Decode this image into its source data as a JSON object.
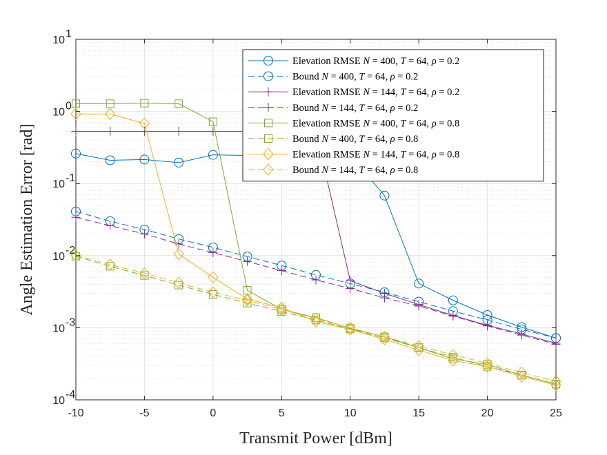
{
  "chart_data": {
    "type": "line",
    "yscale": "log",
    "xlabel": "Transmit Power [dBm]",
    "ylabel": "Angle Estimation Error [rad]",
    "xlim": [
      -10,
      25
    ],
    "ylim": [
      0.0001,
      10
    ],
    "x_ticks": [
      -10,
      -5,
      0,
      5,
      10,
      15,
      20,
      25
    ],
    "x_tick_labels": [
      "-10",
      "-5",
      "0",
      "5",
      "10",
      "15",
      "20",
      "25"
    ],
    "y_ticks": [
      {
        "value": 0.0001,
        "base": "10",
        "exp": "-4"
      },
      {
        "value": 0.001,
        "base": "10",
        "exp": "-3"
      },
      {
        "value": 0.01,
        "base": "10",
        "exp": "-2"
      },
      {
        "value": 0.1,
        "base": "10",
        "exp": "-1"
      },
      {
        "value": 1,
        "base": "10",
        "exp": "0"
      },
      {
        "value": 10,
        "base": "10",
        "exp": "1"
      }
    ],
    "grid": true,
    "minor_grid": true,
    "legend_position": "top-right",
    "x": [
      -10,
      -7.5,
      -5,
      -2.5,
      0,
      2.5,
      5,
      7.5,
      10,
      12.5,
      15,
      17.5,
      20,
      22.5,
      25
    ],
    "series": [
      {
        "name": "Elevation RMSE N = 400, T = 64, ρ = 0.2",
        "color": "#0072BD",
        "dash": "solid",
        "marker": "circle",
        "values": [
          0.26,
          0.21,
          0.215,
          0.195,
          0.25,
          0.245,
          0.25,
          0.24,
          0.245,
          0.068,
          0.0041,
          0.0024,
          0.0015,
          0.00102,
          0.00072
        ]
      },
      {
        "name": "Bound N = 400, T = 64, ρ = 0.2",
        "color": "#0072BD",
        "dash": "dashed",
        "marker": "circle",
        "values": [
          0.041,
          0.03,
          0.023,
          0.017,
          0.013,
          0.0097,
          0.0073,
          0.0054,
          0.0041,
          0.0031,
          0.0023,
          0.0017,
          0.00128,
          0.00095,
          0.00072
        ]
      },
      {
        "name": "Elevation RMSE N = 144, T = 64, ρ = 0.2",
        "color": "#7E2F8E",
        "dash": "solid",
        "marker": "plus",
        "values": [
          0.53,
          0.53,
          0.53,
          0.53,
          0.53,
          0.53,
          0.53,
          0.53,
          0.0045,
          0.003,
          0.0021,
          0.00148,
          0.00108,
          0.00082,
          0.00061
        ]
      },
      {
        "name": "Bound N = 144, T = 64, ρ = 0.2",
        "color": "#7E2F8E",
        "dash": "dashed",
        "marker": "plus",
        "values": [
          0.034,
          0.026,
          0.02,
          0.0145,
          0.011,
          0.0083,
          0.0062,
          0.0046,
          0.0035,
          0.0026,
          0.002,
          0.00145,
          0.00106,
          0.00079,
          0.00059
        ]
      },
      {
        "name": "Elevation RMSE N = 400, T = 64, ρ = 0.8",
        "color": "#77AC30",
        "dash": "solid",
        "marker": "square",
        "values": [
          1.28,
          1.28,
          1.3,
          1.28,
          0.72,
          0.0033,
          0.0018,
          0.00138,
          0.00098,
          0.00075,
          0.00053,
          0.00037,
          0.00031,
          0.00022,
          0.000165
        ]
      },
      {
        "name": "Bound N = 400, T = 64, ρ = 0.8",
        "color": "#77AC30",
        "dash": "dashed",
        "marker": "square",
        "values": [
          0.0098,
          0.0071,
          0.0053,
          0.0039,
          0.0029,
          0.0022,
          0.00168,
          0.00128,
          0.00096,
          0.00072,
          0.00053,
          0.00039,
          0.00029,
          0.00022,
          0.000165
        ]
      },
      {
        "name": "Elevation RMSE N = 144, T = 64, ρ = 0.8",
        "color": "#EDB120",
        "dash": "solid",
        "marker": "diamond",
        "values": [
          0.92,
          0.92,
          0.68,
          0.0105,
          0.005,
          0.0025,
          0.0019,
          0.00122,
          0.00095,
          0.00069,
          0.00049,
          0.00035,
          0.00029,
          0.00021,
          0.00016
        ]
      },
      {
        "name": "Bound N = 144, T = 64, ρ = 0.8",
        "color": "#EDB120",
        "dash": "dashed",
        "marker": "diamond",
        "values": [
          0.0101,
          0.0075,
          0.0057,
          0.0042,
          0.0031,
          0.0024,
          0.00178,
          0.00133,
          0.001,
          0.00075,
          0.00056,
          0.00042,
          0.00032,
          0.00024,
          0.00018
        ]
      }
    ],
    "legend": [
      {
        "label": "Elevation RMSE",
        "n": "N = 400,",
        "t": "T = 64,",
        "rho_sym": "ρ",
        "rho_val": " = 0.2"
      },
      {
        "label": "Bound",
        "n": "N = 400,",
        "t": "T = 64,",
        "rho_sym": "ρ",
        "rho_val": " = 0.2"
      },
      {
        "label": "Elevation RMSE",
        "n": "N = 144,",
        "t": "T = 64,",
        "rho_sym": "ρ",
        "rho_val": " = 0.2"
      },
      {
        "label": "Bound",
        "n": "N = 144,",
        "t": "T = 64,",
        "rho_sym": "ρ",
        "rho_val": " = 0.2"
      },
      {
        "label": "Elevation RMSE",
        "n": "N = 400,",
        "t": "T = 64,",
        "rho_sym": "ρ",
        "rho_val": " = 0.8"
      },
      {
        "label": "Bound",
        "n": "N = 400,",
        "t": "T = 64,",
        "rho_sym": "ρ",
        "rho_val": " = 0.8"
      },
      {
        "label": "Elevation RMSE",
        "n": "N = 144,",
        "t": "T = 64,",
        "rho_sym": "ρ",
        "rho_val": " = 0.8"
      },
      {
        "label": "Bound",
        "n": "N = 144,",
        "t": "T = 64,",
        "rho_sym": "ρ",
        "rho_val": " = 0.8"
      }
    ]
  }
}
